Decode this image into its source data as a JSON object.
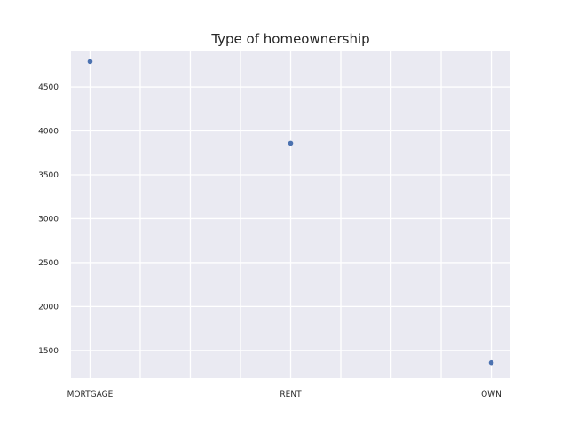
{
  "chart_data": {
    "type": "scatter",
    "title": "Type of homeownership",
    "xlabel": "",
    "ylabel": "",
    "categories": [
      "MORTGAGE",
      "RENT",
      "OWN"
    ],
    "values": [
      4790,
      3860,
      1360
    ],
    "ylim": [
      1185,
      4905
    ],
    "yticks": [
      1500,
      2000,
      2500,
      3000,
      3500,
      4000,
      4500
    ],
    "grid": true,
    "colors": {
      "background": "#eaeaf2",
      "grid": "#ffffff",
      "point": "#4c72b0"
    }
  }
}
